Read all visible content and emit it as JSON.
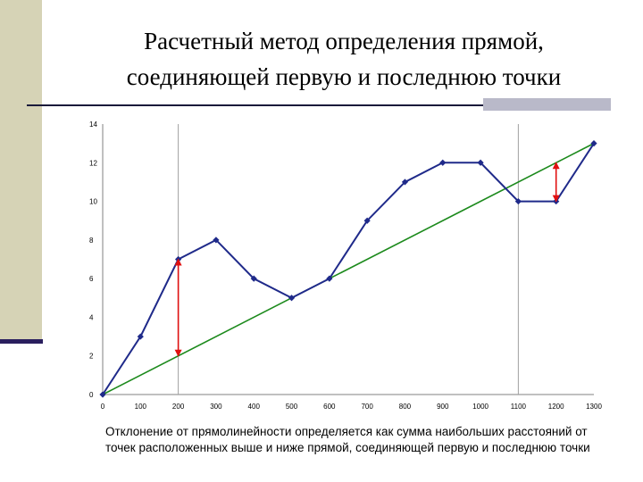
{
  "title": {
    "line1": "Расчетный метод определения прямой,",
    "line2": "соединяющей первую и последнюю точки"
  },
  "caption": "Отклонение от прямолинейности определяется как сумма наибольших расстояний от точек расположенных выше и ниже прямой, соединяющей первую и последнюю точки",
  "colors": {
    "series": "#1f2a8a",
    "baseline": "#1c8a1c",
    "deviation_arrow": "#e01010",
    "sidebar": "#d6d3b6"
  },
  "chart_data": {
    "type": "line",
    "x": [
      0,
      100,
      200,
      300,
      400,
      500,
      600,
      700,
      800,
      900,
      1000,
      1100,
      1200,
      1300
    ],
    "series": [
      {
        "values": [
          0,
          3,
          7,
          8,
          6,
          5,
          6,
          9,
          11,
          12,
          12,
          10,
          10,
          13
        ]
      }
    ],
    "baseline": {
      "from": [
        0,
        0
      ],
      "to": [
        1300,
        13
      ]
    },
    "deviation_markers": [
      {
        "x": 200,
        "y_from": 2,
        "y_to": 7
      },
      {
        "x": 1200,
        "y_from": 10,
        "y_to": 12
      }
    ],
    "vertical_gridlines_at": [
      200,
      1100
    ],
    "xlim": [
      0,
      1300
    ],
    "ylim": [
      0,
      14
    ],
    "x_ticks": [
      "0",
      "100",
      "200",
      "300",
      "400",
      "500",
      "600",
      "700",
      "800",
      "900",
      "1000",
      "1100",
      "1200",
      "1300"
    ],
    "y_ticks": [
      "0",
      "2",
      "4",
      "6",
      "8",
      "10",
      "12",
      "14"
    ],
    "legend": "none"
  }
}
